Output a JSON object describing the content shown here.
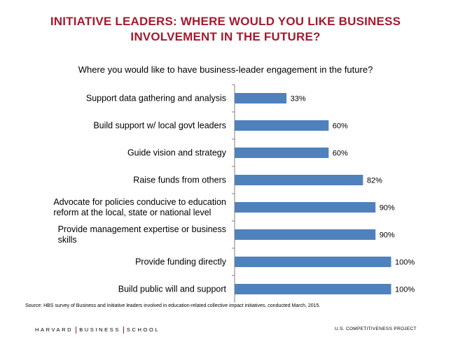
{
  "title_line1": "INITIATIVE LEADERS: WHERE WOULD YOU LIKE BUSINESS",
  "title_line2": "INVOLVEMENT IN THE FUTURE?",
  "chart_data": {
    "type": "bar",
    "orientation": "horizontal",
    "title": "Where you would like to have business-leader engagement in the future?",
    "categories": [
      [
        "Support data gathering and analysis"
      ],
      [
        "Build support w/ local govt leaders"
      ],
      [
        "Guide vision and strategy"
      ],
      [
        "Raise funds from others"
      ],
      [
        "Advocate for policies conducive to education",
        "reform at the local, state or national level"
      ],
      [
        "Provide management expertise or business",
        "skills"
      ],
      [
        "Provide funding directly"
      ],
      [
        "Build public will and support"
      ]
    ],
    "values": [
      33,
      60,
      60,
      82,
      90,
      90,
      100,
      100
    ],
    "value_labels": [
      "33%",
      "60%",
      "60%",
      "82%",
      "90%",
      "90%",
      "100%",
      "100%"
    ],
    "xlim": [
      0,
      100
    ],
    "bar_color": "#4f81bd",
    "grid": false,
    "legend": "none"
  },
  "footer": {
    "source": "Source: HBS survey of Business and Initiative leaders involved in education-related  collective impact initiatives, conducted March, 2015.",
    "logo_parts": [
      "HARVARD",
      "BUSINESS",
      "SCHOOL"
    ],
    "project": "U.S. COMPETITIVENESS PROJECT"
  },
  "colors": {
    "title": "#a6192e",
    "axis": "#808080"
  }
}
